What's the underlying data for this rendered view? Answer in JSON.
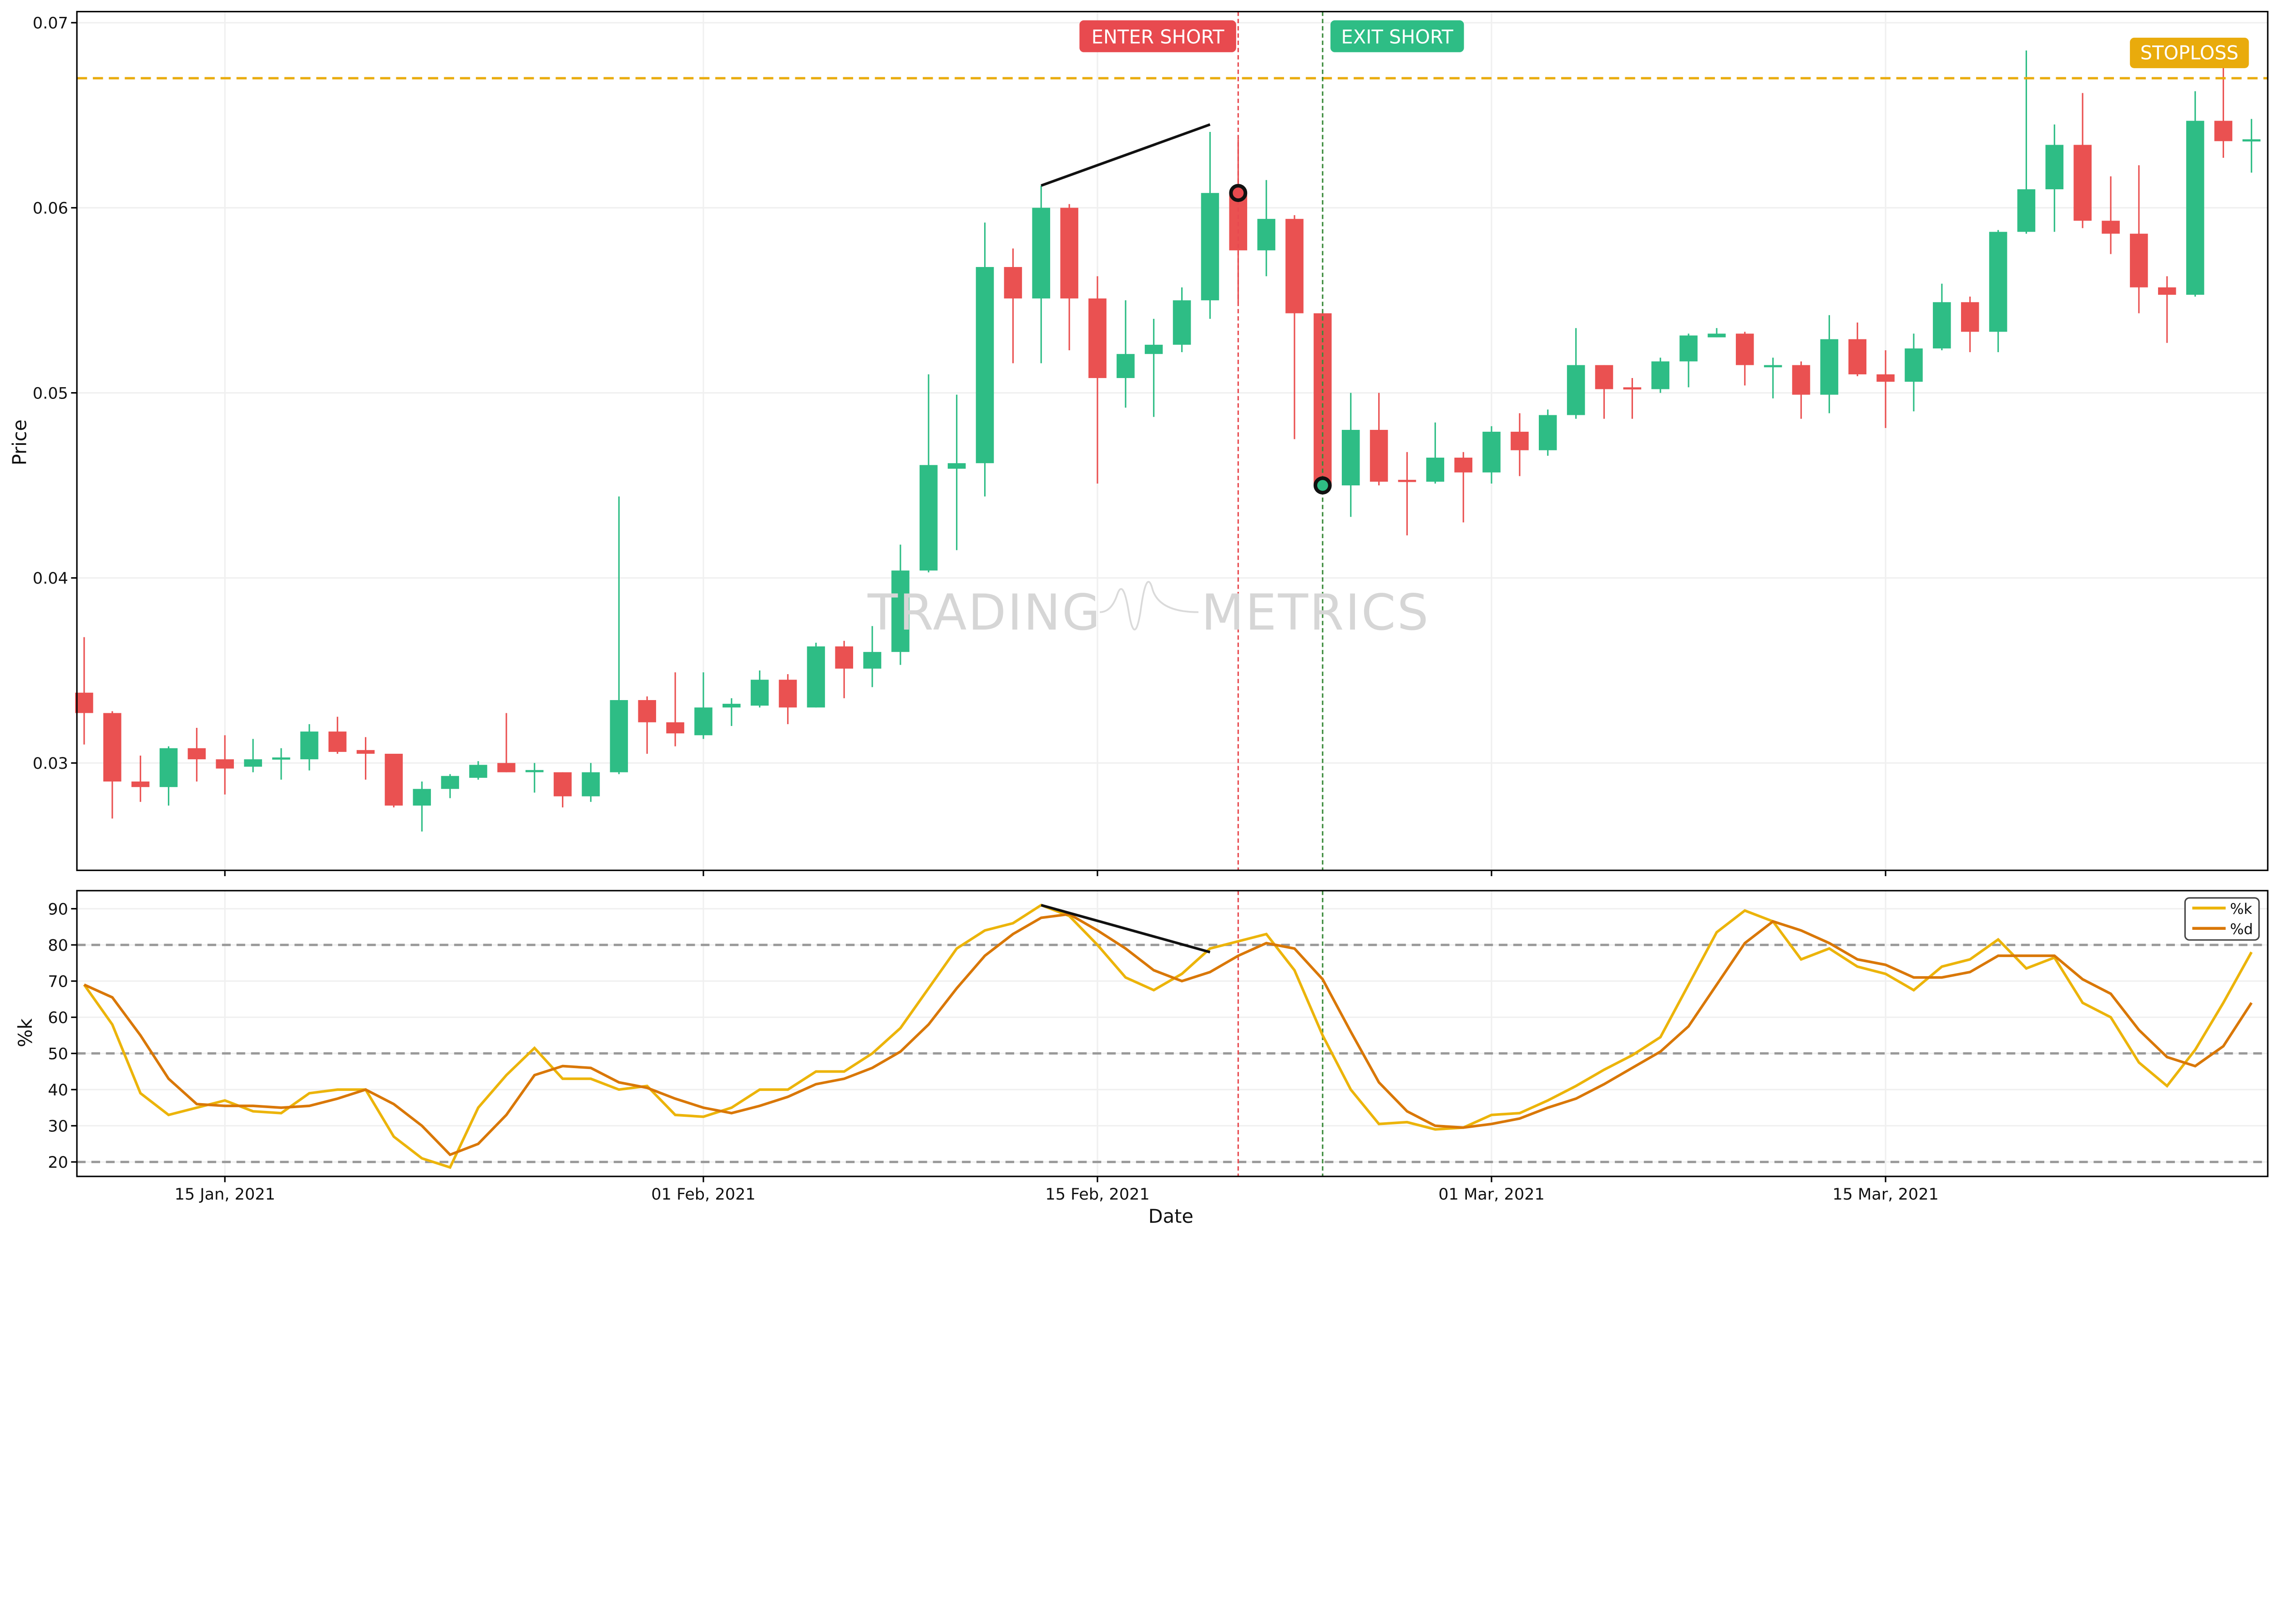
{
  "chart_data": [
    {
      "type": "candlestick",
      "ylabel": "Price",
      "ylim": [
        0.0242,
        0.0706
      ],
      "yticks": [
        "0.03",
        "0.04",
        "0.05",
        "0.06",
        "0.07"
      ],
      "ytick_values": [
        0.03,
        0.04,
        0.05,
        0.06,
        0.07
      ],
      "grid": true,
      "colors": {
        "up": "#2ebd85",
        "down": "#ea5151"
      },
      "dates": [
        "2021-01-10",
        "2021-01-11",
        "2021-01-12",
        "2021-01-13",
        "2021-01-14",
        "2021-01-15",
        "2021-01-16",
        "2021-01-17",
        "2021-01-18",
        "2021-01-19",
        "2021-01-20",
        "2021-01-21",
        "2021-01-22",
        "2021-01-23",
        "2021-01-24",
        "2021-01-25",
        "2021-01-26",
        "2021-01-27",
        "2021-01-28",
        "2021-01-29",
        "2021-01-30",
        "2021-01-31",
        "2021-02-01",
        "2021-02-02",
        "2021-02-03",
        "2021-02-04",
        "2021-02-05",
        "2021-02-06",
        "2021-02-07",
        "2021-02-08",
        "2021-02-09",
        "2021-02-10",
        "2021-02-11",
        "2021-02-12",
        "2021-02-13",
        "2021-02-14",
        "2021-02-15",
        "2021-02-16",
        "2021-02-17",
        "2021-02-18",
        "2021-02-19",
        "2021-02-20",
        "2021-02-21",
        "2021-02-22",
        "2021-02-23",
        "2021-02-24",
        "2021-02-25",
        "2021-02-26",
        "2021-02-27",
        "2021-02-28",
        "2021-03-01",
        "2021-03-02",
        "2021-03-03",
        "2021-03-04",
        "2021-03-05",
        "2021-03-06",
        "2021-03-07",
        "2021-03-08",
        "2021-03-09",
        "2021-03-10",
        "2021-03-11",
        "2021-03-12",
        "2021-03-13",
        "2021-03-14",
        "2021-03-15",
        "2021-03-16",
        "2021-03-17",
        "2021-03-18",
        "2021-03-19",
        "2021-03-20",
        "2021-03-21",
        "2021-03-22",
        "2021-03-23",
        "2021-03-24",
        "2021-03-25",
        "2021-03-26",
        "2021-03-27",
        "2021-03-28"
      ],
      "open": [
        0.0338,
        0.0327,
        0.029,
        0.0287,
        0.0308,
        0.0302,
        0.0298,
        0.0302,
        0.0302,
        0.0317,
        0.0307,
        0.0305,
        0.0277,
        0.0286,
        0.0292,
        0.03,
        0.02955,
        0.0295,
        0.0282,
        0.0295,
        0.0334,
        0.0322,
        0.0315,
        0.033,
        0.0331,
        0.0345,
        0.033,
        0.0363,
        0.0351,
        0.036,
        0.0404,
        0.0459,
        0.0462,
        0.0568,
        0.0551,
        0.06,
        0.0551,
        0.0508,
        0.0521,
        0.0526,
        0.055,
        0.0608,
        0.0577,
        0.0594,
        0.0543,
        0.045,
        0.048,
        0.0453,
        0.0452,
        0.0465,
        0.0457,
        0.0479,
        0.0469,
        0.0488,
        0.0515,
        0.0503,
        0.0502,
        0.0517,
        0.053,
        0.0532,
        0.0514,
        0.0515,
        0.0499,
        0.0529,
        0.051,
        0.0506,
        0.0524,
        0.0549,
        0.0533,
        0.0587,
        0.061,
        0.0634,
        0.0593,
        0.0586,
        0.0557,
        0.0553,
        0.0647,
        0.0636
      ],
      "high": [
        0.0368,
        0.0328,
        0.0304,
        0.0309,
        0.0319,
        0.0315,
        0.0313,
        0.0308,
        0.0321,
        0.0325,
        0.0314,
        0.0305,
        0.029,
        0.0294,
        0.0301,
        0.0327,
        0.03,
        0.0295,
        0.03,
        0.0444,
        0.0336,
        0.0349,
        0.0349,
        0.0335,
        0.035,
        0.0348,
        0.0365,
        0.0366,
        0.0374,
        0.0418,
        0.051,
        0.0499,
        0.0592,
        0.0578,
        0.0612,
        0.0602,
        0.0563,
        0.055,
        0.054,
        0.0557,
        0.0641,
        0.0637,
        0.0615,
        0.0596,
        0.0543,
        0.05,
        0.05,
        0.0468,
        0.0484,
        0.0468,
        0.0482,
        0.0489,
        0.0491,
        0.0535,
        0.0515,
        0.0508,
        0.0519,
        0.0532,
        0.0535,
        0.0533,
        0.0519,
        0.0517,
        0.0542,
        0.0538,
        0.0523,
        0.0532,
        0.0559,
        0.0552,
        0.0588,
        0.0685,
        0.0645,
        0.0662,
        0.0617,
        0.0623,
        0.0563,
        0.0663,
        0.068,
        0.0648
      ],
      "low": [
        0.031,
        0.027,
        0.0279,
        0.0277,
        0.029,
        0.0283,
        0.0295,
        0.0291,
        0.0296,
        0.0305,
        0.0291,
        0.0276,
        0.0263,
        0.0281,
        0.0291,
        0.0295,
        0.0284,
        0.0276,
        0.0279,
        0.0294,
        0.0305,
        0.0309,
        0.0313,
        0.032,
        0.033,
        0.0321,
        0.033,
        0.0335,
        0.0341,
        0.0353,
        0.0403,
        0.0415,
        0.0444,
        0.0516,
        0.0516,
        0.0523,
        0.0451,
        0.0492,
        0.0487,
        0.0522,
        0.054,
        0.0549,
        0.0563,
        0.0475,
        0.0449,
        0.0433,
        0.045,
        0.0423,
        0.0451,
        0.043,
        0.0451,
        0.0455,
        0.0466,
        0.0486,
        0.0486,
        0.0486,
        0.05,
        0.0503,
        0.053,
        0.0504,
        0.0497,
        0.0486,
        0.0489,
        0.0509,
        0.0481,
        0.049,
        0.0523,
        0.0522,
        0.0522,
        0.0586,
        0.0587,
        0.0589,
        0.0575,
        0.0543,
        0.0527,
        0.0552,
        0.0627,
        0.0619
      ],
      "close": [
        0.0327,
        0.029,
        0.0287,
        0.0308,
        0.0302,
        0.0297,
        0.0302,
        0.0303,
        0.0317,
        0.0306,
        0.0305,
        0.0277,
        0.0286,
        0.0293,
        0.0299,
        0.0295,
        0.02962,
        0.0282,
        0.0295,
        0.0334,
        0.0322,
        0.0316,
        0.033,
        0.0332,
        0.0345,
        0.033,
        0.0363,
        0.0351,
        0.036,
        0.0404,
        0.0461,
        0.0462,
        0.0568,
        0.0551,
        0.06,
        0.0551,
        0.0508,
        0.0521,
        0.0526,
        0.055,
        0.0608,
        0.0577,
        0.0594,
        0.0543,
        0.045,
        0.048,
        0.0452,
        0.0452,
        0.0465,
        0.0457,
        0.0479,
        0.0469,
        0.0488,
        0.0515,
        0.0502,
        0.0502,
        0.0517,
        0.0531,
        0.0532,
        0.0515,
        0.0515,
        0.0499,
        0.0529,
        0.051,
        0.0506,
        0.0524,
        0.0549,
        0.0533,
        0.0587,
        0.061,
        0.0634,
        0.0593,
        0.0586,
        0.0557,
        0.0553,
        0.0647,
        0.0636,
        0.0637
      ],
      "stoploss": {
        "label": "STOPLOSS",
        "value": 0.067,
        "color": "#e9ab0c"
      },
      "enter_short": {
        "label": "ENTER SHORT",
        "date": "2021-02-20",
        "price": 0.0608,
        "color": "#e84a4f"
      },
      "exit_short": {
        "label": "EXIT SHORT",
        "date": "2021-02-23",
        "price": 0.045,
        "color": "#2ebd85"
      },
      "divergence_line": {
        "from": {
          "date": "2021-02-13",
          "value": 0.0612
        },
        "to": {
          "date": "2021-02-19",
          "value": 0.0645
        }
      }
    },
    {
      "type": "line",
      "xlabel": "Date",
      "ylabel": "%k",
      "ylim": [
        16,
        95
      ],
      "yticks": [
        "20",
        "30",
        "40",
        "50",
        "60",
        "70",
        "80",
        "90"
      ],
      "ytick_values": [
        20,
        30,
        40,
        50,
        60,
        70,
        80,
        90
      ],
      "xticks": [
        "15 Jan, 2021",
        "01 Feb, 2021",
        "15 Feb, 2021",
        "01 Mar, 2021",
        "15 Mar, 2021"
      ],
      "xtick_dates": [
        "2021-01-15",
        "2021-02-01",
        "2021-02-15",
        "2021-03-01",
        "2021-03-15"
      ],
      "reference_lines": [
        20,
        50,
        80
      ],
      "legend_position": "top-right",
      "series": [
        {
          "name": "%k",
          "color": "#ecb40a",
          "values": [
            69,
            58,
            39,
            33,
            35,
            37,
            34,
            33.5,
            39,
            40,
            40,
            27,
            21,
            18.5,
            35,
            44,
            51.5,
            43,
            43,
            40,
            41,
            33,
            32.5,
            35,
            40,
            40,
            45,
            45,
            50,
            57,
            68,
            79,
            84,
            86,
            91,
            88,
            80,
            71,
            67.5,
            72,
            79,
            81,
            83,
            73,
            55,
            40,
            30.5,
            31,
            29,
            29.5,
            33,
            33.5,
            37,
            41,
            45.5,
            49.5,
            54.5,
            69,
            83.5,
            89.5,
            86.5,
            76,
            79,
            74,
            72,
            67.5,
            74,
            76,
            81.5,
            73.5,
            76.5,
            64,
            60,
            47.5,
            41,
            51,
            64,
            78
          ]
        },
        {
          "name": "%d",
          "color": "#d97706",
          "values": [
            69,
            65.5,
            55,
            43,
            36,
            35.5,
            35.5,
            35,
            35.5,
            37.5,
            40,
            36,
            30,
            22,
            25,
            33,
            44,
            46.5,
            46,
            42,
            40.5,
            37.5,
            35,
            33.5,
            35.5,
            38,
            41.5,
            43,
            46,
            50.5,
            58,
            68,
            77,
            83,
            87.5,
            88.5,
            84,
            79,
            73,
            70,
            72.5,
            77,
            80.5,
            79,
            70.5,
            56,
            42,
            34,
            30,
            29.5,
            30.5,
            32,
            35,
            37.5,
            41.5,
            46,
            50.5,
            57.5,
            69,
            80.5,
            86.5,
            84,
            80.5,
            76,
            74.5,
            71,
            71,
            72.5,
            77,
            77,
            77,
            70.5,
            66.5,
            56.5,
            49,
            46.5,
            52,
            64
          ]
        }
      ],
      "divergence_line": {
        "from": {
          "date": "2021-02-13",
          "value": 91
        },
        "to": {
          "date": "2021-02-19",
          "value": 78
        }
      }
    }
  ],
  "watermark": {
    "left": "TRADING",
    "right": "METRICS"
  }
}
